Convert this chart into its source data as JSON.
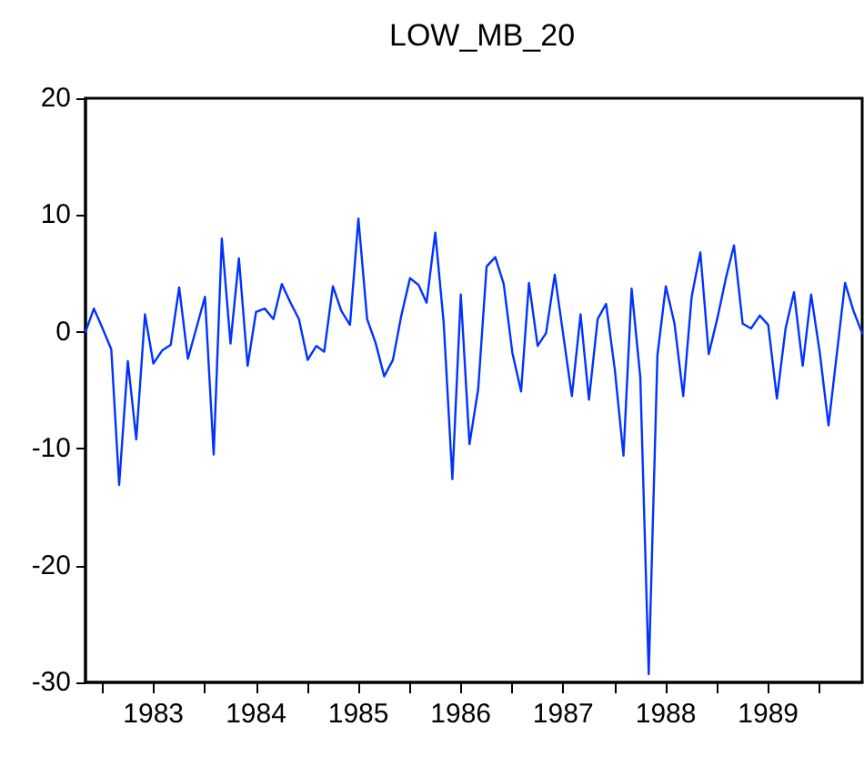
{
  "chart_data": {
    "type": "line",
    "title": "LOW_MB_20",
    "x": [
      "1982-11",
      "1982-12",
      "1983-01",
      "1983-02",
      "1983-03",
      "1983-04",
      "1983-05",
      "1983-06",
      "1983-07",
      "1983-08",
      "1983-09",
      "1983-10",
      "1983-11",
      "1983-12",
      "1984-01",
      "1984-02",
      "1984-03",
      "1984-04",
      "1984-05",
      "1984-06",
      "1984-07",
      "1984-08",
      "1984-09",
      "1984-10",
      "1984-11",
      "1984-12",
      "1985-01",
      "1985-02",
      "1985-03",
      "1985-04",
      "1985-05",
      "1985-06",
      "1985-07",
      "1985-08",
      "1985-09",
      "1985-10",
      "1985-11",
      "1985-12",
      "1986-01",
      "1986-02",
      "1986-03",
      "1986-04",
      "1986-05",
      "1986-06",
      "1986-07",
      "1986-08",
      "1986-09",
      "1986-10",
      "1986-11",
      "1986-12",
      "1987-01",
      "1987-02",
      "1987-03",
      "1987-04",
      "1987-05",
      "1987-06",
      "1987-07",
      "1987-08",
      "1987-09",
      "1987-10",
      "1987-11",
      "1987-12",
      "1988-01",
      "1988-02",
      "1988-03",
      "1988-04",
      "1988-05",
      "1988-06",
      "1988-07",
      "1988-08",
      "1988-09",
      "1988-10",
      "1988-11",
      "1988-12",
      "1989-01",
      "1989-02",
      "1989-03",
      "1989-04",
      "1989-05",
      "1989-06",
      "1989-07",
      "1989-08",
      "1989-09",
      "1989-10",
      "1989-11",
      "1989-12",
      "1990-01",
      "1990-02",
      "1990-03",
      "1990-04",
      "1990-05",
      "1990-06"
    ],
    "series": [
      {
        "color": "#0033ff",
        "values": [
          0,
          2.0,
          0.3,
          -1.5,
          -13.1,
          -2.5,
          -9.2,
          1.5,
          -2.7,
          -1.6,
          -1.1,
          3.8,
          -2.3,
          0.3,
          3.0,
          -10.5,
          8.0,
          -1.0,
          6.3,
          -2.9,
          1.7,
          2.0,
          1.1,
          4.1,
          2.5,
          1.1,
          -2.4,
          -1.2,
          -1.7,
          3.9,
          1.8,
          0.6,
          9.7,
          1.1,
          -1.0,
          -3.8,
          -2.4,
          1.4,
          4.6,
          4.0,
          2.5,
          8.5,
          0.8,
          -12.6,
          3.2,
          -9.6,
          -4.9,
          5.6,
          6.4,
          4.1,
          -1.8,
          -5.1,
          4.2,
          -1.2,
          -0.1,
          4.9,
          -0.2,
          -5.5,
          1.5,
          -5.8,
          1.1,
          2.4,
          -3.2,
          -10.6,
          3.7,
          -3.9,
          -29.3,
          -2.0,
          3.9,
          0.7,
          -5.5,
          3.0,
          6.8,
          -1.9,
          1.2,
          4.7,
          7.4,
          0.7,
          0.3,
          1.4,
          0.6,
          -5.7,
          0.3,
          3.4,
          -2.9,
          3.2,
          -1.8,
          -8.0,
          -2.2,
          4.2,
          1.8,
          -0.1
        ]
      }
    ],
    "xlim": [
      "1982-11",
      "1990-06"
    ],
    "xticks": [
      {
        "value": "1983-01",
        "label": null
      },
      {
        "value": "1983-07",
        "label": "1983"
      },
      {
        "value": "1984-01",
        "label": null
      },
      {
        "value": "1984-07",
        "label": "1984"
      },
      {
        "value": "1985-01",
        "label": null
      },
      {
        "value": "1985-07",
        "label": "1985"
      },
      {
        "value": "1986-01",
        "label": null
      },
      {
        "value": "1986-07",
        "label": "1986"
      },
      {
        "value": "1987-01",
        "label": null
      },
      {
        "value": "1987-07",
        "label": "1987"
      },
      {
        "value": "1988-01",
        "label": null
      },
      {
        "value": "1988-07",
        "label": "1988"
      },
      {
        "value": "1989-01",
        "label": null
      },
      {
        "value": "1989-07",
        "label": "1989"
      },
      {
        "value": "1990-01",
        "label": null
      }
    ],
    "ylim": [
      -30,
      20
    ],
    "yticks": [
      -30,
      -20,
      -10,
      0,
      10,
      20
    ],
    "grid": false,
    "marker": "none",
    "line_style": "solid"
  }
}
